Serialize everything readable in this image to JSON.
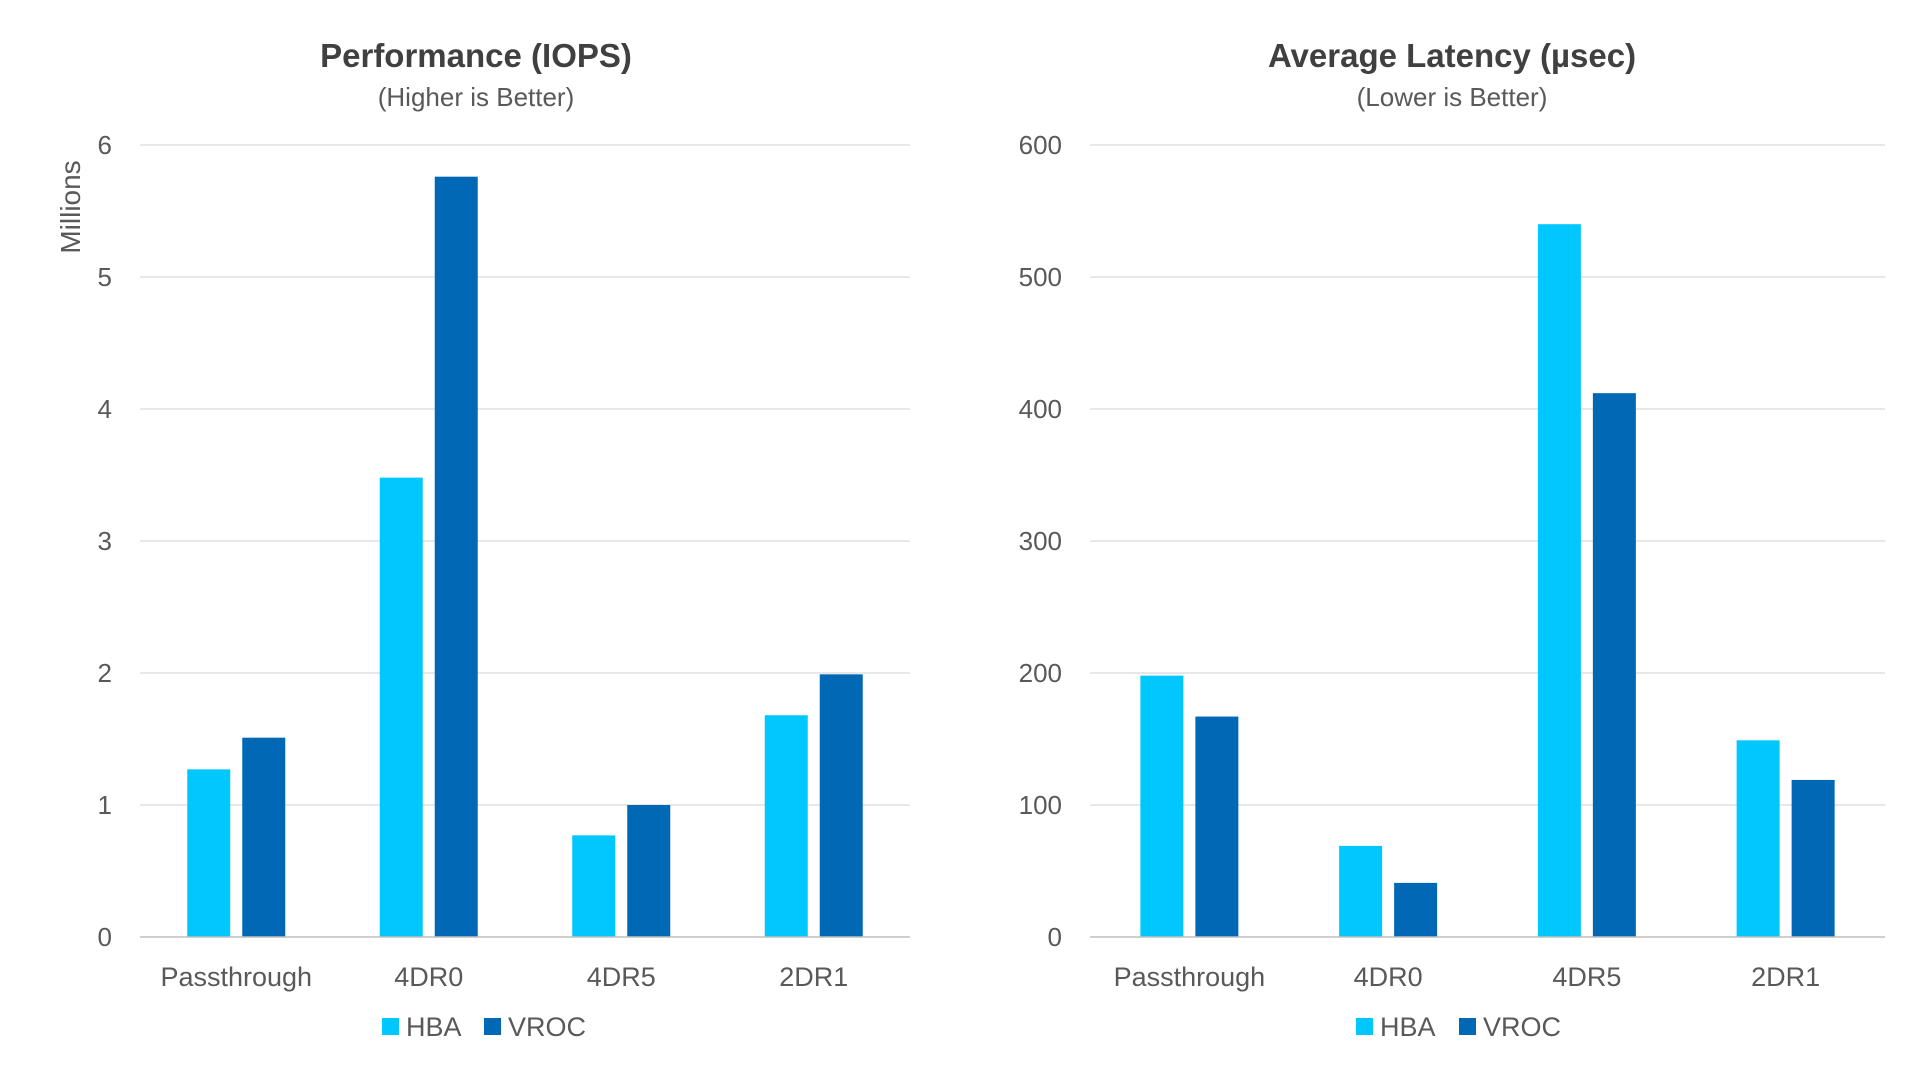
{
  "colors": {
    "HBA": "#00c7fd",
    "VROC": "#0068b5"
  },
  "chart_data": [
    {
      "type": "bar",
      "title": "Performance (IOPS)",
      "subtitle": "(Higher is Better)",
      "ylabel": "Millions",
      "xlabel": "",
      "categories": [
        "Passthrough",
        "4DR0",
        "4DR5",
        "2DR1"
      ],
      "series": [
        {
          "name": "HBA",
          "values": [
            1.27,
            3.48,
            0.77,
            1.68
          ]
        },
        {
          "name": "VROC",
          "values": [
            1.51,
            5.76,
            1.0,
            1.99
          ]
        }
      ],
      "ylim": [
        0,
        6
      ],
      "yticks": [
        0,
        1,
        2,
        3,
        4,
        5,
        6
      ],
      "ytick_labels": [
        "0",
        "1",
        "2",
        "3",
        "4",
        "5",
        "6"
      ],
      "grid": true,
      "legend": "bottom-center"
    },
    {
      "type": "bar",
      "title": "Average Latency (µsec)",
      "subtitle": "(Lower is Better)",
      "ylabel": "",
      "xlabel": "",
      "categories": [
        "Passthrough",
        "4DR0",
        "4DR5",
        "2DR1"
      ],
      "series": [
        {
          "name": "HBA",
          "values": [
            198,
            69,
            540,
            149
          ]
        },
        {
          "name": "VROC",
          "values": [
            167,
            41,
            412,
            119
          ]
        }
      ],
      "ylim": [
        0,
        600
      ],
      "yticks": [
        0,
        100,
        200,
        300,
        400,
        500,
        600
      ],
      "ytick_labels": [
        "0",
        "100",
        "200",
        "300",
        "400",
        "500",
        "600"
      ],
      "grid": true,
      "legend": "bottom-center"
    }
  ]
}
